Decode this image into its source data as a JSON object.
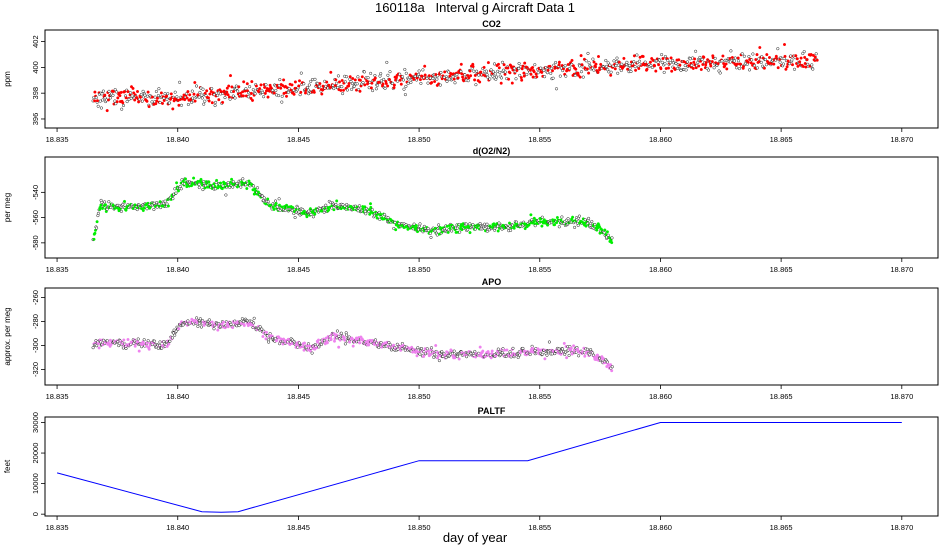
{
  "page": {
    "title": "160118a   Interval g Aircraft Data 1",
    "xlabel": "day of year"
  },
  "chart_data": [
    {
      "type": "scatter",
      "title": "CO2",
      "ylabel": "ppm",
      "color": "#ff0000",
      "xlim": [
        18.8345,
        18.8715
      ],
      "ylim": [
        395.3,
        402.9
      ],
      "yticks": [
        396,
        398,
        400,
        402
      ],
      "x_range": [
        18.8365,
        18.8665
      ],
      "trend": [
        [
          18.8365,
          397.7
        ],
        [
          18.84,
          397.6
        ],
        [
          18.845,
          398.4
        ],
        [
          18.85,
          399.2
        ],
        [
          18.855,
          399.8
        ],
        [
          18.86,
          400.3
        ],
        [
          18.8665,
          400.5
        ]
      ],
      "noise": 0.55,
      "n_points": 1150,
      "seed": 11
    },
    {
      "type": "scatter",
      "title": "d(O2/N2)",
      "ylabel": "per meg",
      "color": "#00ee00",
      "xlim": [
        18.8345,
        18.8715
      ],
      "ylim": [
        -592,
        -512
      ],
      "yticks": [
        -540,
        -560,
        -580
      ],
      "x_range": [
        18.8365,
        18.858
      ],
      "trend": [
        [
          18.8365,
          -578
        ],
        [
          18.8368,
          -550
        ],
        [
          18.838,
          -552
        ],
        [
          18.8395,
          -550
        ],
        [
          18.8402,
          -532
        ],
        [
          18.8415,
          -535
        ],
        [
          18.843,
          -533
        ],
        [
          18.8438,
          -550
        ],
        [
          18.8455,
          -557
        ],
        [
          18.8465,
          -550
        ],
        [
          18.848,
          -555
        ],
        [
          18.8492,
          -566
        ],
        [
          18.8505,
          -570
        ],
        [
          18.852,
          -567
        ],
        [
          18.8535,
          -568
        ],
        [
          18.855,
          -563
        ],
        [
          18.857,
          -563
        ],
        [
          18.858,
          -578
        ]
      ],
      "noise": 2.8,
      "n_points": 900,
      "seed": 23
    },
    {
      "type": "scatter",
      "title": "APO",
      "ylabel": "approx. per meg",
      "color": "#ee82ee",
      "xlim": [
        18.8345,
        18.8715
      ],
      "ylim": [
        -333,
        -252
      ],
      "yticks": [
        -260,
        -280,
        -300,
        -320
      ],
      "x_range": [
        18.8365,
        18.858
      ],
      "trend": [
        [
          18.8365,
          -298
        ],
        [
          18.838,
          -298
        ],
        [
          18.8395,
          -300
        ],
        [
          18.8402,
          -280
        ],
        [
          18.842,
          -283
        ],
        [
          18.843,
          -280
        ],
        [
          18.8438,
          -293
        ],
        [
          18.8455,
          -302
        ],
        [
          18.8465,
          -292
        ],
        [
          18.848,
          -298
        ],
        [
          18.8495,
          -303
        ],
        [
          18.851,
          -308
        ],
        [
          18.853,
          -307
        ],
        [
          18.8555,
          -305
        ],
        [
          18.857,
          -304
        ],
        [
          18.858,
          -318
        ]
      ],
      "noise": 3.0,
      "n_points": 900,
      "seed": 37
    },
    {
      "type": "line",
      "title": "PALTF",
      "ylabel": "feet",
      "color": "#0000ff",
      "xlim": [
        18.8345,
        18.8715
      ],
      "ylim": [
        -600,
        31800
      ],
      "yticks": [
        0,
        10000,
        20000,
        30000
      ],
      "x": [
        18.835,
        18.841,
        18.8418,
        18.8425,
        18.85,
        18.8545,
        18.86,
        18.87
      ],
      "y": [
        13500,
        800,
        600,
        800,
        17500,
        17500,
        30000,
        30000
      ]
    }
  ],
  "xticks": [
    "18.835",
    "18.840",
    "18.845",
    "18.850",
    "18.855",
    "18.860",
    "18.865",
    "18.870"
  ]
}
